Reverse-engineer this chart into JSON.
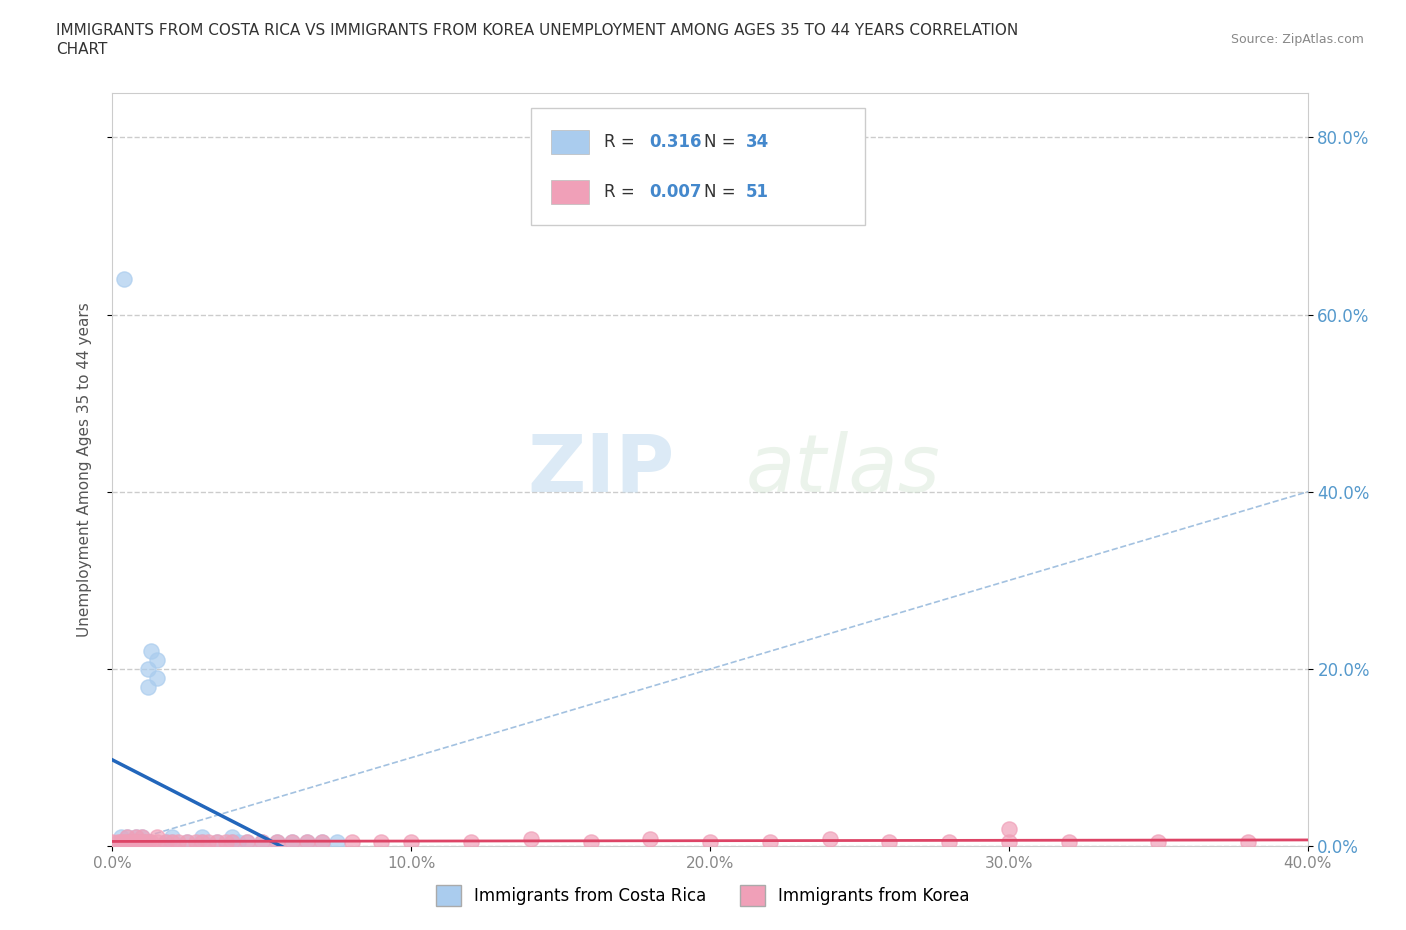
{
  "title_line1": "IMMIGRANTS FROM COSTA RICA VS IMMIGRANTS FROM KOREA UNEMPLOYMENT AMONG AGES 35 TO 44 YEARS CORRELATION",
  "title_line2": "CHART",
  "source": "Source: ZipAtlas.com",
  "ylabel": "Unemployment Among Ages 35 to 44 years",
  "legend_label1": "Immigrants from Costa Rica",
  "legend_label2": "Immigrants from Korea",
  "R1": 0.316,
  "N1": 34,
  "R2": 0.007,
  "N2": 51,
  "color1": "#aaccee",
  "color2": "#f0a0b8",
  "trendline1_color": "#2266bb",
  "trendline2_color": "#dd4466",
  "diag_color": "#99bbdd",
  "xlim": [
    0,
    0.4
  ],
  "ylim": [
    0,
    0.85
  ],
  "xticks": [
    0.0,
    0.1,
    0.2,
    0.3,
    0.4
  ],
  "yticks_right": [
    0.0,
    0.2,
    0.4,
    0.6,
    0.8
  ],
  "background_color": "#ffffff",
  "watermark_zip": "ZIP",
  "watermark_atlas": "atlas",
  "costa_rica_x": [
    0.005,
    0.005,
    0.008,
    0.008,
    0.01,
    0.01,
    0.012,
    0.012,
    0.013,
    0.015,
    0.015,
    0.018,
    0.02,
    0.02,
    0.025,
    0.03,
    0.03,
    0.035,
    0.04,
    0.04,
    0.042,
    0.045,
    0.05,
    0.055,
    0.06,
    0.065,
    0.07,
    0.075,
    0.003,
    0.003,
    0.004,
    0.006,
    0.009,
    0.011
  ],
  "costa_rica_y": [
    0.005,
    0.01,
    0.005,
    0.01,
    0.005,
    0.01,
    0.18,
    0.2,
    0.22,
    0.19,
    0.21,
    0.005,
    0.005,
    0.01,
    0.005,
    0.005,
    0.01,
    0.005,
    0.005,
    0.01,
    0.005,
    0.005,
    0.005,
    0.005,
    0.005,
    0.005,
    0.005,
    0.005,
    0.005,
    0.01,
    0.64,
    0.005,
    0.005,
    0.005
  ],
  "korea_x": [
    0.0,
    0.002,
    0.003,
    0.004,
    0.005,
    0.005,
    0.006,
    0.007,
    0.008,
    0.008,
    0.009,
    0.01,
    0.01,
    0.011,
    0.012,
    0.013,
    0.015,
    0.015,
    0.018,
    0.02,
    0.022,
    0.025,
    0.028,
    0.03,
    0.032,
    0.035,
    0.038,
    0.04,
    0.045,
    0.05,
    0.055,
    0.06,
    0.065,
    0.07,
    0.08,
    0.09,
    0.1,
    0.12,
    0.14,
    0.16,
    0.18,
    0.2,
    0.22,
    0.24,
    0.26,
    0.28,
    0.3,
    0.32,
    0.35,
    0.38,
    0.3
  ],
  "korea_y": [
    0.005,
    0.005,
    0.005,
    0.005,
    0.005,
    0.01,
    0.005,
    0.005,
    0.005,
    0.01,
    0.005,
    0.005,
    0.01,
    0.005,
    0.005,
    0.005,
    0.005,
    0.01,
    0.005,
    0.005,
    0.005,
    0.005,
    0.005,
    0.005,
    0.005,
    0.005,
    0.005,
    0.005,
    0.005,
    0.005,
    0.005,
    0.005,
    0.005,
    0.005,
    0.005,
    0.005,
    0.005,
    0.005,
    0.008,
    0.005,
    0.008,
    0.005,
    0.005,
    0.008,
    0.005,
    0.005,
    0.005,
    0.005,
    0.005,
    0.005,
    0.02
  ]
}
